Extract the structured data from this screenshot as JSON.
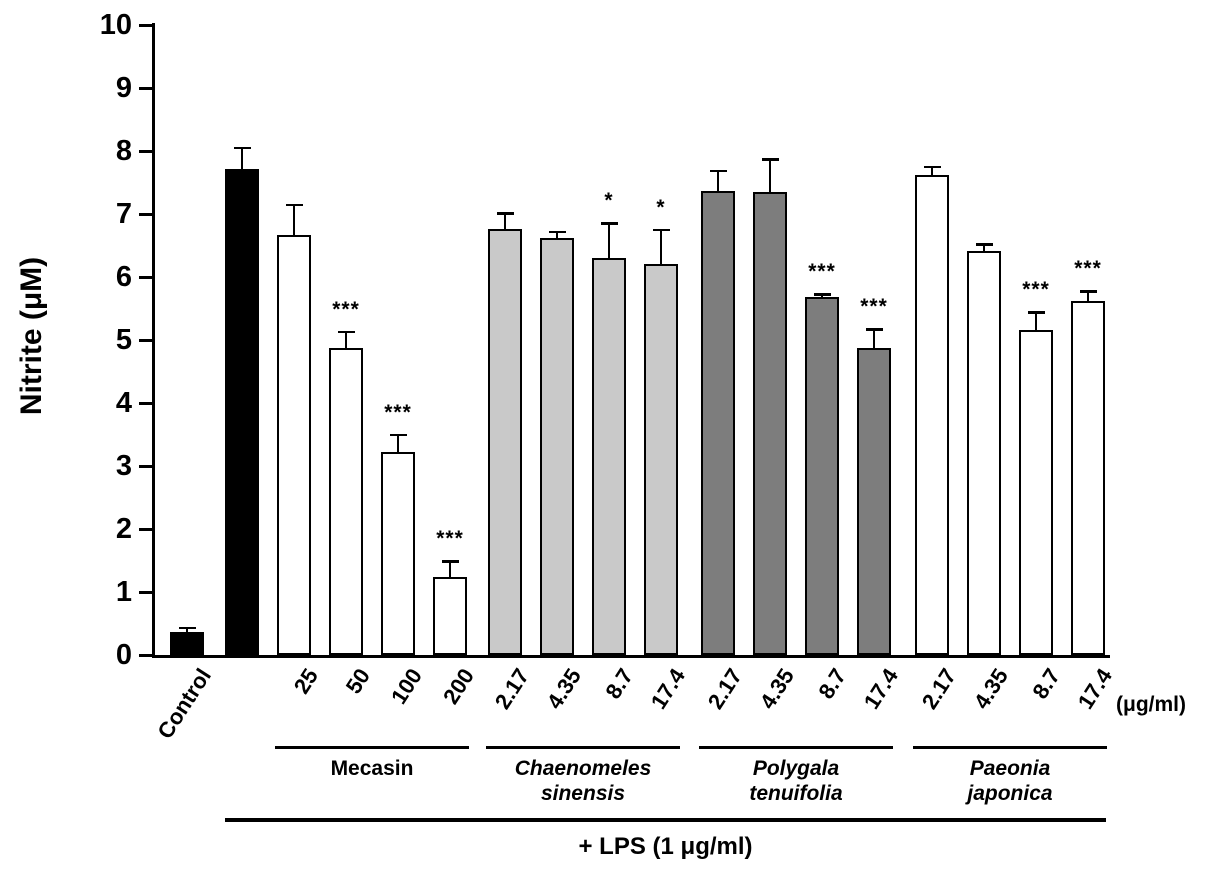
{
  "chart_data": {
    "type": "bar",
    "title": "",
    "ylabel": "Nitrite (μM)",
    "xlabel": "",
    "ylim": [
      0,
      10
    ],
    "yticks": [
      0,
      1,
      2,
      3,
      4,
      5,
      6,
      7,
      8,
      9,
      10
    ],
    "x_unit_label": "(μg/ml)",
    "bottom_bracket_label": "+ LPS (1 μg/ml)",
    "grid": false,
    "legend": false,
    "colors": {
      "black": "#000000",
      "white": "#ffffff",
      "light_gray": "#c9c9c9",
      "dark_gray": "#7d7d7d"
    },
    "bars": [
      {
        "label": "Control",
        "value": 0.37,
        "error": 0.06,
        "sig": "",
        "fill": "black"
      },
      {
        "label": "",
        "value": 7.72,
        "error": 0.33,
        "sig": "",
        "fill": "black"
      },
      {
        "label": "25",
        "value": 6.67,
        "error": 0.48,
        "sig": "",
        "fill": "white"
      },
      {
        "label": "50",
        "value": 4.87,
        "error": 0.26,
        "sig": "***",
        "fill": "white"
      },
      {
        "label": "100",
        "value": 3.22,
        "error": 0.28,
        "sig": "***",
        "fill": "white"
      },
      {
        "label": "200",
        "value": 1.24,
        "error": 0.25,
        "sig": "***",
        "fill": "white"
      },
      {
        "label": "2.17",
        "value": 6.76,
        "error": 0.25,
        "sig": "",
        "fill": "light_gray"
      },
      {
        "label": "4.35",
        "value": 6.62,
        "error": 0.1,
        "sig": "",
        "fill": "light_gray"
      },
      {
        "label": "8.7",
        "value": 6.3,
        "error": 0.55,
        "sig": "*",
        "fill": "light_gray"
      },
      {
        "label": "17.4",
        "value": 6.2,
        "error": 0.55,
        "sig": "*",
        "fill": "light_gray"
      },
      {
        "label": "2.17",
        "value": 7.37,
        "error": 0.32,
        "sig": "",
        "fill": "dark_gray"
      },
      {
        "label": "4.35",
        "value": 7.35,
        "error": 0.52,
        "sig": "",
        "fill": "dark_gray"
      },
      {
        "label": "8.7",
        "value": 5.69,
        "error": 0.04,
        "sig": "***",
        "fill": "dark_gray"
      },
      {
        "label": "17.4",
        "value": 4.87,
        "error": 0.3,
        "sig": "***",
        "fill": "dark_gray"
      },
      {
        "label": "2.17",
        "value": 7.62,
        "error": 0.13,
        "sig": "",
        "fill": "white"
      },
      {
        "label": "4.35",
        "value": 6.41,
        "error": 0.11,
        "sig": "",
        "fill": "white"
      },
      {
        "label": "8.7",
        "value": 5.16,
        "error": 0.28,
        "sig": "***",
        "fill": "white"
      },
      {
        "label": "17.4",
        "value": 5.62,
        "error": 0.15,
        "sig": "***",
        "fill": "white"
      }
    ],
    "groups": [
      {
        "name_lines": [
          "Mecasin"
        ],
        "italic": false,
        "start": 2,
        "end": 5
      },
      {
        "name_lines": [
          "Chaenomeles",
          "sinensis"
        ],
        "italic": true,
        "start": 6,
        "end": 9
      },
      {
        "name_lines": [
          "Polygala",
          "tenuifolia"
        ],
        "italic": true,
        "start": 10,
        "end": 13
      },
      {
        "name_lines": [
          "Paeonia",
          "japonica"
        ],
        "italic": true,
        "start": 14,
        "end": 17
      }
    ],
    "lps_bracket": {
      "start": 1,
      "end": 17
    }
  }
}
